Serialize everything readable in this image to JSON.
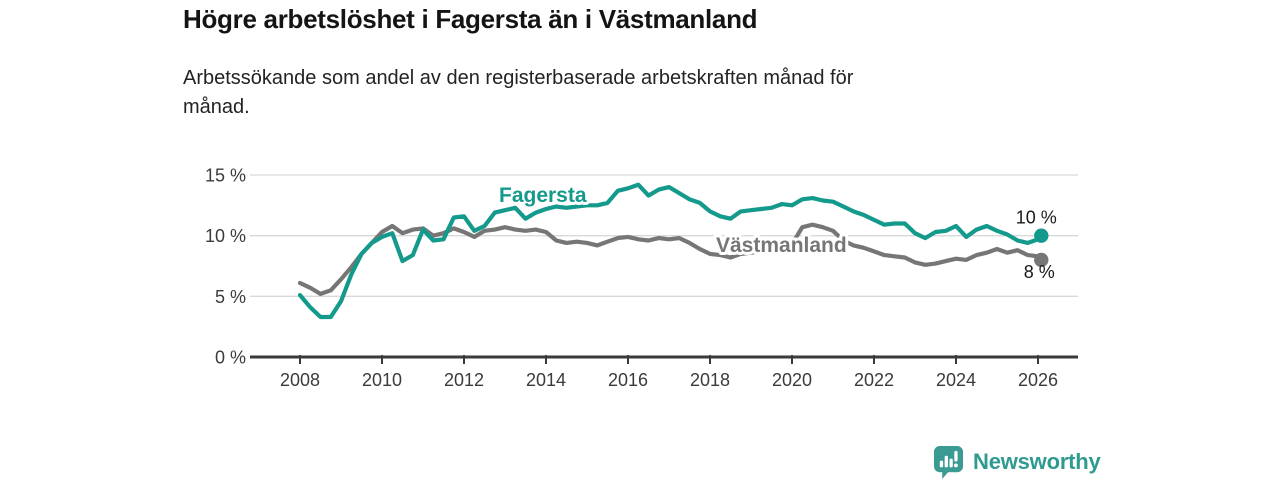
{
  "header": {
    "title": "Högre arbetslöshet i Fagersta än i Västmanland",
    "subtitle_line1": "Arbetssökande som andel av den registerbaserade arbetskraften månad för",
    "subtitle_line2": "månad."
  },
  "footer": {
    "brand": "Newsworthy",
    "logo_icon": "bar-chart-speech-bubble"
  },
  "colors": {
    "fagersta_teal": "#149a8c",
    "vastmanland_gray": "#767676",
    "axis": "#3a3a3a",
    "grid": "#d9d9d9",
    "tick_text": "#3b3b3b",
    "annotation_text": "#1a1a1a",
    "brand_teal": "#2f9a90"
  },
  "chart_data": {
    "type": "line",
    "title": "Högre arbetslöshet i Fagersta än i Västmanland",
    "subtitle": "Arbetssökande som andel av den registerbaserade arbetskraften månad för månad.",
    "unit": "%",
    "grid": "horizontal",
    "legend": "inline-labels",
    "ylim": [
      0,
      15
    ],
    "yticks": [
      {
        "value": 0,
        "label": "0 %"
      },
      {
        "value": 5,
        "label": "5 %"
      },
      {
        "value": 10,
        "label": "10 %"
      },
      {
        "value": 15,
        "label": "15 %"
      }
    ],
    "xticks": [
      2008,
      2010,
      2012,
      2014,
      2016,
      2018,
      2020,
      2022,
      2024,
      2026
    ],
    "x_years": [
      2008,
      2008.25,
      2008.5,
      2008.75,
      2009,
      2009.25,
      2009.5,
      2009.75,
      2010,
      2010.25,
      2010.5,
      2010.75,
      2011,
      2011.25,
      2011.5,
      2011.75,
      2012,
      2012.25,
      2012.5,
      2012.75,
      2013,
      2013.25,
      2013.5,
      2013.75,
      2014,
      2014.25,
      2014.5,
      2014.75,
      2015,
      2015.25,
      2015.5,
      2015.75,
      2016,
      2016.25,
      2016.5,
      2016.75,
      2017,
      2017.25,
      2017.5,
      2017.75,
      2018,
      2018.25,
      2018.5,
      2018.75,
      2019,
      2019.25,
      2019.5,
      2019.75,
      2020,
      2020.25,
      2020.5,
      2020.75,
      2021,
      2021.25,
      2021.5,
      2021.75,
      2022,
      2022.25,
      2022.5,
      2022.75,
      2023,
      2023.25,
      2023.5,
      2023.75,
      2024,
      2024.25,
      2024.5,
      2024.75,
      2025,
      2025.25,
      2025.5,
      2025.75,
      2026,
      2026.08
    ],
    "series": [
      {
        "name": "Fagersta",
        "color": "#149a8c",
        "end_label": "10 %",
        "end_value": 10.0,
        "values": [
          5.1,
          4.1,
          3.3,
          3.3,
          4.6,
          6.8,
          8.5,
          9.4,
          9.9,
          10.2,
          7.9,
          8.4,
          10.5,
          9.6,
          9.7,
          11.5,
          11.6,
          10.4,
          10.8,
          11.9,
          12.1,
          12.3,
          11.4,
          11.9,
          12.2,
          12.4,
          12.3,
          12.4,
          12.5,
          12.5,
          12.7,
          13.7,
          13.9,
          14.2,
          13.3,
          13.8,
          14.0,
          13.5,
          13.0,
          12.7,
          12.0,
          11.6,
          11.4,
          12.0,
          12.1,
          12.2,
          12.3,
          12.6,
          12.5,
          13.0,
          13.1,
          12.9,
          12.8,
          12.4,
          12.0,
          11.7,
          11.3,
          10.9,
          11.0,
          11.0,
          10.2,
          9.8,
          10.3,
          10.4,
          10.8,
          9.9,
          10.5,
          10.8,
          10.4,
          10.1,
          9.6,
          9.4,
          9.7,
          10.0
        ]
      },
      {
        "name": "Västmanland",
        "color": "#767676",
        "end_label": "8 %",
        "end_value": 8.0,
        "values": [
          6.1,
          5.7,
          5.2,
          5.5,
          6.4,
          7.4,
          8.5,
          9.4,
          10.3,
          10.8,
          10.2,
          10.5,
          10.6,
          10.0,
          10.2,
          10.6,
          10.3,
          9.9,
          10.4,
          10.5,
          10.7,
          10.5,
          10.4,
          10.5,
          10.3,
          9.6,
          9.4,
          9.5,
          9.4,
          9.2,
          9.5,
          9.8,
          9.9,
          9.7,
          9.6,
          9.8,
          9.7,
          9.8,
          9.4,
          8.9,
          8.5,
          8.4,
          8.2,
          8.5,
          8.6,
          8.7,
          8.8,
          9.2,
          9.3,
          10.7,
          10.9,
          10.7,
          10.4,
          9.6,
          9.2,
          9.0,
          8.7,
          8.4,
          8.3,
          8.2,
          7.8,
          7.6,
          7.7,
          7.9,
          8.1,
          8.0,
          8.4,
          8.6,
          8.9,
          8.6,
          8.8,
          8.4,
          8.3,
          8.0
        ]
      }
    ]
  }
}
